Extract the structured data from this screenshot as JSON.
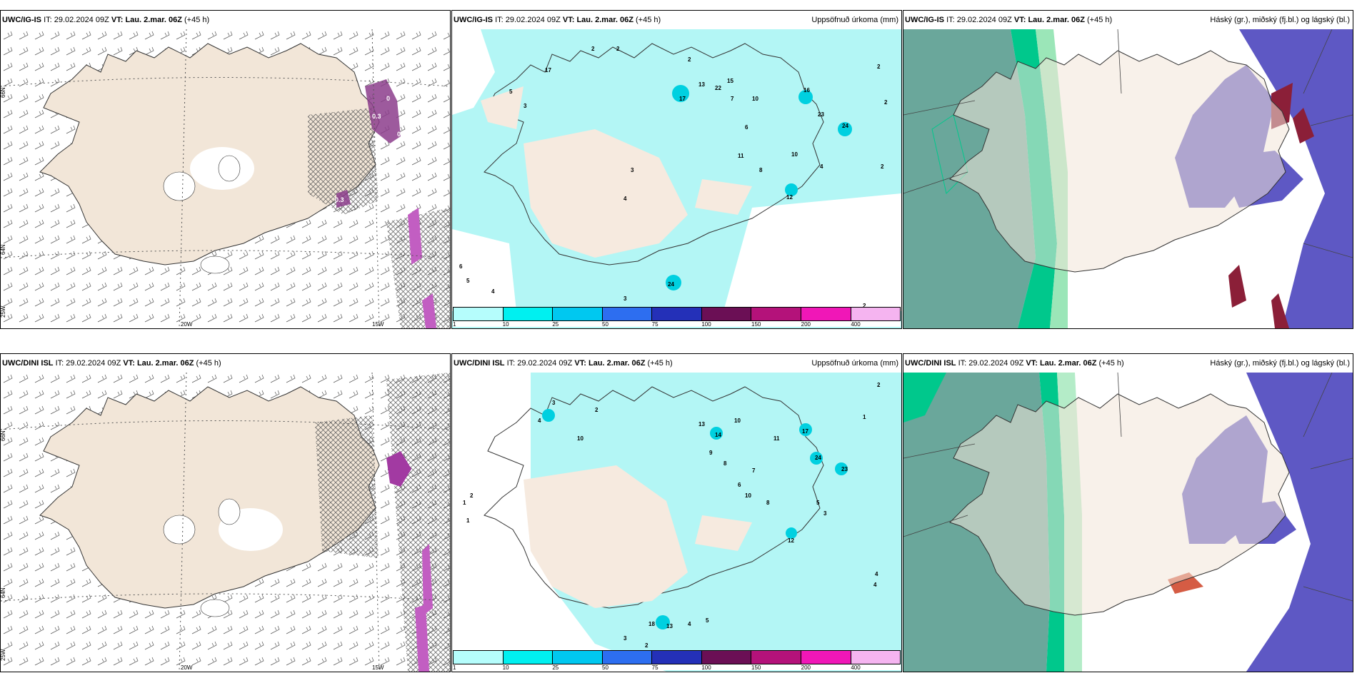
{
  "rows": [
    {
      "model": "UWC/IG-IS",
      "panels": [
        {
          "type": "wind",
          "it_label": "IT:",
          "it_value": "29.02.2024 09Z",
          "vt_label": "VT:",
          "vt_value": "Lau. 2.mar. 06Z",
          "lead": "(+45 h)",
          "right_title": ""
        },
        {
          "type": "precip",
          "it_label": "IT:",
          "it_value": "29.02.2024 09Z",
          "vt_label": "VT:",
          "vt_value": "Lau. 2.mar. 06Z",
          "lead": "(+45 h)",
          "right_title": "Uppsöfnuð úrkoma (mm)"
        },
        {
          "type": "cloud",
          "it_label": "IT:",
          "it_value": "29.02.2024 09Z",
          "vt_label": "VT:",
          "vt_value": "Lau. 2.mar. 06Z",
          "lead": "(+45 h)",
          "right_title": "Háský (gr.), miðský (fj.bl.) og lágský (bl.)"
        }
      ],
      "precip_values": [
        "2",
        "2",
        "2",
        "17",
        "17",
        "13",
        "22",
        "15",
        "16",
        "23",
        "24",
        "5",
        "3",
        "7",
        "10",
        "6",
        "8",
        "11",
        "12",
        "10",
        "4",
        "4",
        "3",
        "2",
        "2",
        "2",
        "6",
        "5",
        "4",
        "24",
        "3",
        "9",
        "2"
      ]
    },
    {
      "model": "UWC/DINI ISL",
      "panels": [
        {
          "type": "wind",
          "it_label": "IT:",
          "it_value": "29.02.2024 09Z",
          "vt_label": "VT:",
          "vt_value": "Lau. 2.mar. 06Z",
          "lead": "(+45 h)",
          "right_title": ""
        },
        {
          "type": "precip",
          "it_label": "IT:",
          "it_value": "29.02.2024 09Z",
          "vt_label": "VT:",
          "vt_value": "Lau. 2.mar. 06Z",
          "lead": "(+45 h)",
          "right_title": "Uppsöfnuð úrkoma (mm)"
        },
        {
          "type": "cloud",
          "it_label": "IT:",
          "it_value": "29.02.2024 09Z",
          "vt_label": "VT:",
          "vt_value": "Lau. 2.mar. 06Z",
          "lead": "(+45 h)",
          "right_title": "Háský (gr.), miðský (fj.bl.) og lágský (bl.)"
        }
      ],
      "precip_values": [
        "3",
        "2",
        "4",
        "10",
        "13",
        "14",
        "10",
        "17",
        "24",
        "23",
        "9",
        "8",
        "7",
        "6",
        "11",
        "10",
        "8",
        "12",
        "5",
        "3",
        "2",
        "1",
        "1",
        "2",
        "1",
        "4",
        "4",
        "18",
        "13",
        "4",
        "5",
        "2",
        "3"
      ]
    }
  ],
  "wind_map_labels": {
    "lon_20w": "20W",
    "lon_15w": "15W",
    "lat_66n": "66N",
    "lat_64n": "64N",
    "lon_25w": "25W"
  },
  "wind_values_top": [
    "0",
    "0.3",
    "0.3",
    "0.3",
    "0.1"
  ],
  "precip_colorbar": {
    "ticks": [
      "1",
      "10",
      "25",
      "50",
      "75",
      "100",
      "150",
      "200",
      "400"
    ],
    "colors": [
      "#b5fdfc",
      "#00f0f0",
      "#00c8f0",
      "#2d6ef0",
      "#2430b8",
      "#6b0f55",
      "#b4127a",
      "#f017b7",
      "#f5b4f0"
    ]
  },
  "colors": {
    "land": "#f2e6d8",
    "sea_wind": "#ffffff",
    "precip_light": "#b3f6f5",
    "cloud_high": "#6aa79b",
    "cloud_mid": "#00c88c",
    "cloud_low": "#5e58c4",
    "cloud_low_dark": "#3c2a9a",
    "purple": "#8c3d8c"
  }
}
